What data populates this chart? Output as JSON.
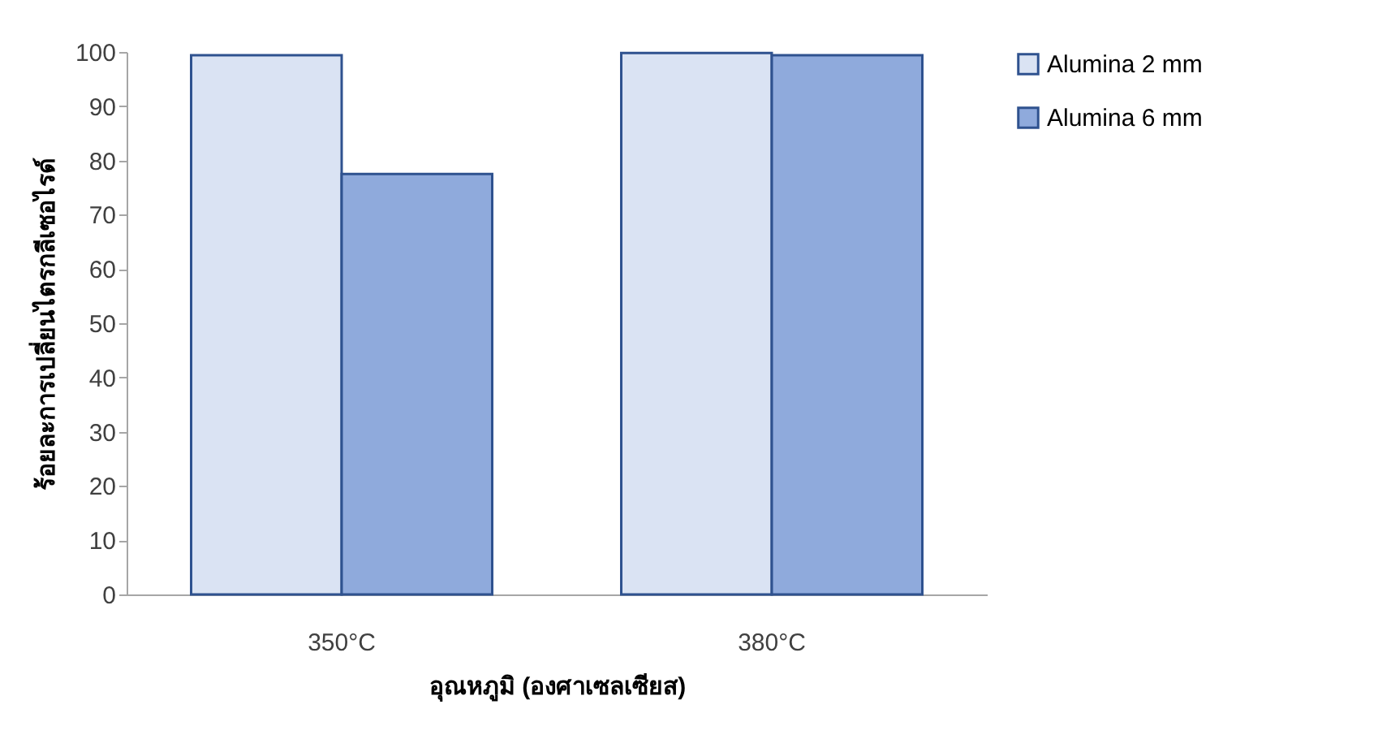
{
  "chart_data": {
    "type": "bar",
    "xlabel": "อุณหภูมิ (องศาเซลเซียส)",
    "ylabel": "ร้อยละการเปลี่ยนไตรกลีเซอไรด์",
    "categories": [
      "350°C",
      "380°C"
    ],
    "series": [
      {
        "name": "Alumina 2 mm",
        "color": "#dae3f3",
        "values": [
          99.4,
          99.8
        ]
      },
      {
        "name": "Alumina 6 mm",
        "color": "#8faadc",
        "values": [
          77.5,
          99.4
        ]
      }
    ],
    "ylim": [
      0,
      100
    ],
    "yticks": [
      0,
      10,
      20,
      30,
      40,
      50,
      60,
      70,
      80,
      90,
      100
    ],
    "grid": false,
    "legend": "right"
  }
}
